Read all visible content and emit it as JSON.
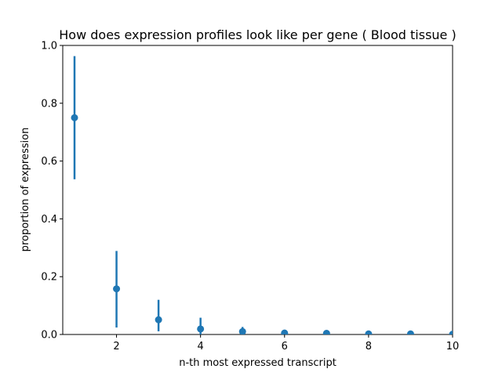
{
  "figure": {
    "background": "#ffffff"
  },
  "chart_data": {
    "type": "scatter",
    "title": "How does expression profiles look like per gene ( Blood tissue )",
    "xlabel": "n-th most expressed transcript",
    "ylabel": "proportion of expression",
    "xlim": [
      0.72,
      10.0
    ],
    "ylim": [
      0.0,
      1.0
    ],
    "xticks": [
      2,
      4,
      6,
      8,
      10
    ],
    "yticks": [
      0.0,
      0.2,
      0.4,
      0.6,
      0.8,
      1.0
    ],
    "grid": false,
    "legend": "none",
    "series": [
      {
        "name": "mean-proportion-with-errorbars",
        "color": "#1f77b4",
        "marker": "circle",
        "x": [
          1,
          2,
          3,
          4,
          5,
          6,
          7,
          8,
          9,
          10
        ],
        "y": [
          0.75,
          0.158,
          0.051,
          0.019,
          0.01,
          0.005,
          0.004,
          0.002,
          0.002,
          0.001
        ],
        "err_low": [
          0.537,
          0.024,
          0.011,
          0.0,
          0.0,
          0.0,
          0.0,
          0.0,
          0.0,
          0.0
        ],
        "err_high": [
          0.963,
          0.289,
          0.12,
          0.058,
          0.026,
          0.01,
          0.007,
          0.004,
          0.004,
          0.002
        ]
      }
    ],
    "spine_color": "#000000",
    "text_color": "#000000",
    "tick_label_format_y": "one-decimal"
  }
}
